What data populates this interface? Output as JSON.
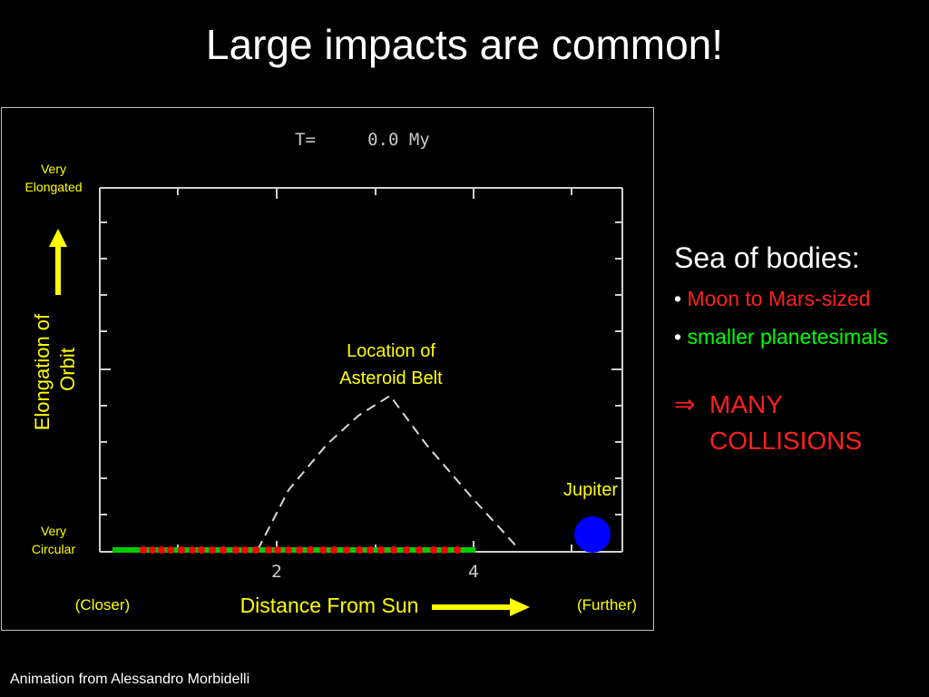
{
  "slide": {
    "title": "Large impacts are common!",
    "credit": "Animation from Alessandro Morbidelli"
  },
  "plot": {
    "time_label": "T=     0.0 My",
    "y_top_label": "Very\nElongated",
    "y_bottom_label": "Very\nCircular",
    "y_axis_label": "Elongation of\nOrbit",
    "x_axis_label": "Distance From Sun",
    "x_left_label": "(Closer)",
    "x_right_label": "(Further)",
    "x_ticks": [
      "2",
      "4"
    ],
    "belt_label": "Location of\nAsteroid Belt",
    "jupiter_label": "Jupiter",
    "colors": {
      "accent": "#ffff00",
      "jupiter": "#0000ff",
      "embryo": "#ff0000",
      "planetesimal": "#00cc00"
    }
  },
  "sidebar": {
    "heading": "Sea of bodies:",
    "bullets": [
      {
        "text": "Moon to Mars-sized",
        "color": "#ff2020"
      },
      {
        "text": "smaller planetesimals",
        "color": "#00ff00"
      }
    ],
    "conclusion_symbol": "⇒",
    "conclusion": "MANY\nCOLLISIONS",
    "conclusion_color": "#ff2020"
  }
}
